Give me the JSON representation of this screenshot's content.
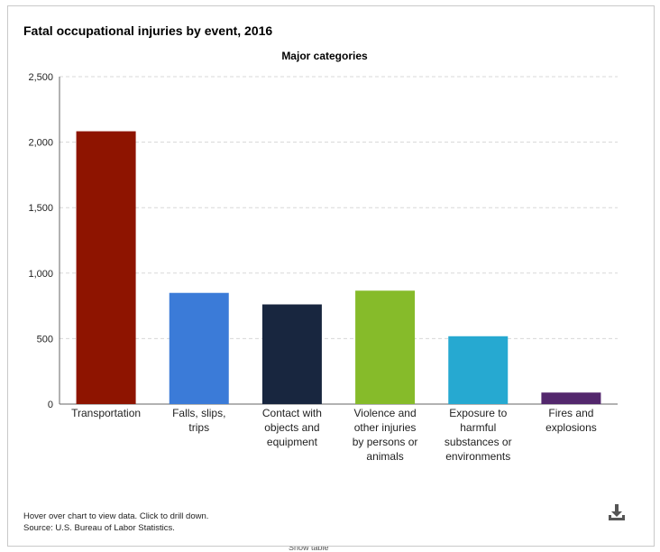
{
  "chart_data": {
    "type": "bar",
    "title": "Fatal occupational injuries by event, 2016",
    "subtitle": "Major categories",
    "categories": [
      [
        "Transportation"
      ],
      [
        "Falls, slips,",
        "trips"
      ],
      [
        "Contact with",
        "objects and",
        "equipment"
      ],
      [
        "Violence and",
        "other injuries",
        "by persons or",
        "animals"
      ],
      [
        "Exposure to",
        "harmful",
        "substances or",
        "environments"
      ],
      [
        "Fires and",
        "explosions"
      ]
    ],
    "values": [
      2083,
      849,
      761,
      866,
      518,
      88
    ],
    "colors": [
      "#8e1400",
      "#3b7bd8",
      "#18263f",
      "#86bb2a",
      "#26a9d1",
      "#53276d"
    ],
    "ylim": [
      0,
      2500
    ],
    "yticks": [
      0,
      500,
      1000,
      1500,
      2000,
      2500
    ],
    "ytick_labels": [
      "0",
      "500",
      "1,000",
      "1,500",
      "2,000",
      "2,500"
    ],
    "xlabel": "",
    "ylabel": "",
    "grid": true
  },
  "footer": {
    "hint": "Hover over chart to view data. Click to drill down.",
    "source": "Source: U.S. Bureau of Labor Statistics."
  },
  "icons": {
    "download": "download-icon"
  },
  "below_fold_text": "Show table"
}
